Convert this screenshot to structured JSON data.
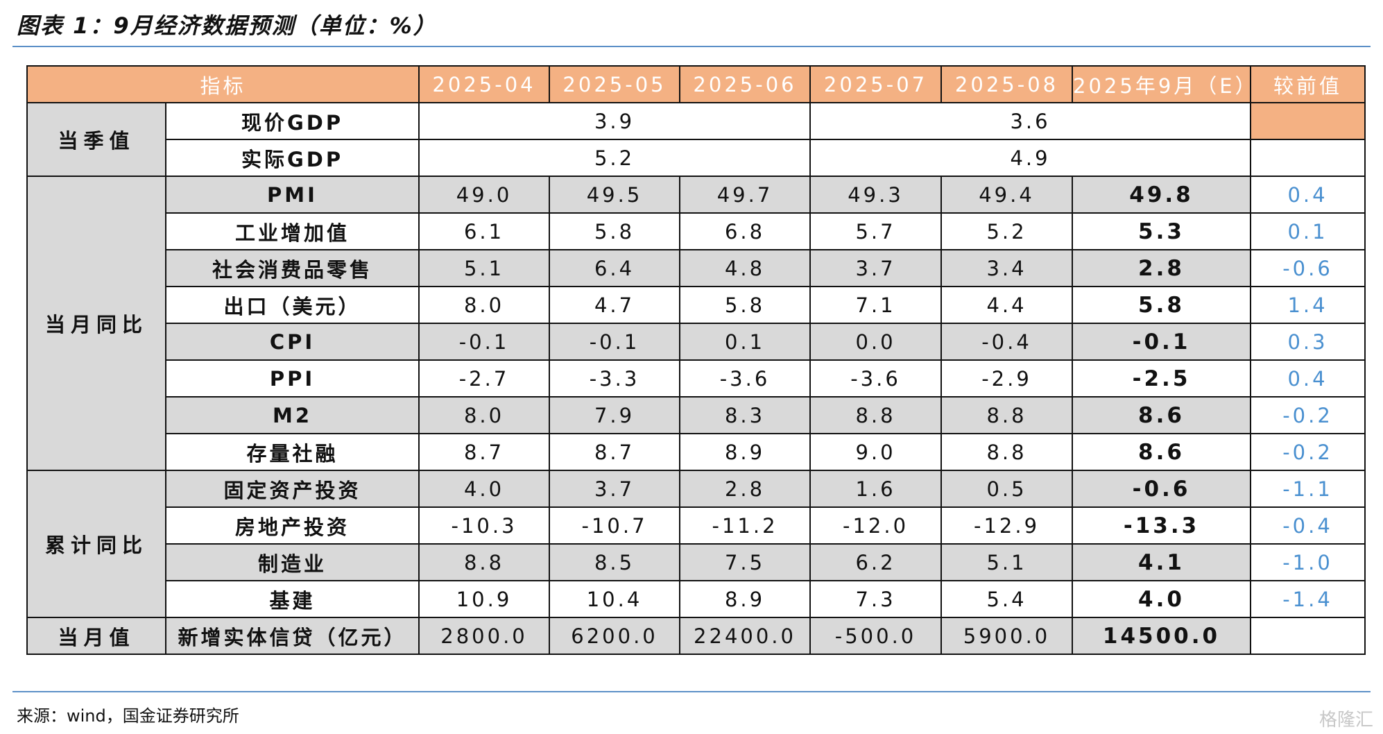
{
  "title": "图表 1：9月经济数据预测（单位：%）",
  "table": {
    "header": [
      "指标",
      "2025-04",
      "2025-05",
      "2025-06",
      "2025-07",
      "2025-08",
      "2025年9月（E）",
      "较前值"
    ],
    "groups": [
      {
        "label": "当季值",
        "rows": [
          {
            "name": "现价GDP",
            "merged": [
              "3.9",
              "3.6"
            ]
          },
          {
            "name": "实际GDP",
            "merged": [
              "5.2",
              "4.9"
            ]
          }
        ]
      },
      {
        "label": "当月同比",
        "rows": [
          {
            "name": "PMI",
            "values": [
              "49.0",
              "49.5",
              "49.7",
              "49.3",
              "49.4",
              "49.8"
            ],
            "change": "0.4"
          },
          {
            "name": "工业增加值",
            "values": [
              "6.1",
              "5.8",
              "6.8",
              "5.7",
              "5.2",
              "5.3"
            ],
            "change": "0.1"
          },
          {
            "name": "社会消费品零售",
            "values": [
              "5.1",
              "6.4",
              "4.8",
              "3.7",
              "3.4",
              "2.8"
            ],
            "change": "-0.6"
          },
          {
            "name": "出口（美元）",
            "values": [
              "8.0",
              "4.7",
              "5.8",
              "7.1",
              "4.4",
              "5.8"
            ],
            "change": "1.4"
          },
          {
            "name": "CPI",
            "values": [
              "-0.1",
              "-0.1",
              "0.1",
              "0.0",
              "-0.4",
              "-0.1"
            ],
            "change": "0.3"
          },
          {
            "name": "PPI",
            "values": [
              "-2.7",
              "-3.3",
              "-3.6",
              "-3.6",
              "-2.9",
              "-2.5"
            ],
            "change": "0.4"
          },
          {
            "name": "M2",
            "values": [
              "8.0",
              "7.9",
              "8.3",
              "8.8",
              "8.8",
              "8.6"
            ],
            "change": "-0.2"
          },
          {
            "name": "存量社融",
            "values": [
              "8.7",
              "8.7",
              "8.9",
              "9.0",
              "8.8",
              "8.6"
            ],
            "change": "-0.2"
          }
        ]
      },
      {
        "label": "累计同比",
        "rows": [
          {
            "name": "固定资产投资",
            "values": [
              "4.0",
              "3.7",
              "2.8",
              "1.6",
              "0.5",
              "-0.6"
            ],
            "change": "-1.1"
          },
          {
            "name": "房地产投资",
            "values": [
              "-10.3",
              "-10.7",
              "-11.2",
              "-12.0",
              "-12.9",
              "-13.3"
            ],
            "change": "-0.4"
          },
          {
            "name": "制造业",
            "values": [
              "8.8",
              "8.5",
              "7.5",
              "6.2",
              "5.1",
              "4.1"
            ],
            "change": "-1.0"
          },
          {
            "name": "基建",
            "values": [
              "10.9",
              "10.4",
              "8.9",
              "7.3",
              "5.4",
              "4.0"
            ],
            "change": "-1.4"
          }
        ]
      },
      {
        "label": "当月值",
        "rows": [
          {
            "name": "新增实体信贷（亿元）",
            "values": [
              "2800.0",
              "6200.0",
              "22400.0",
              "-500.0",
              "5900.0",
              "14500.0"
            ]
          }
        ]
      }
    ]
  },
  "source": "来源：wind，国金证券研究所",
  "watermark": "格隆汇"
}
